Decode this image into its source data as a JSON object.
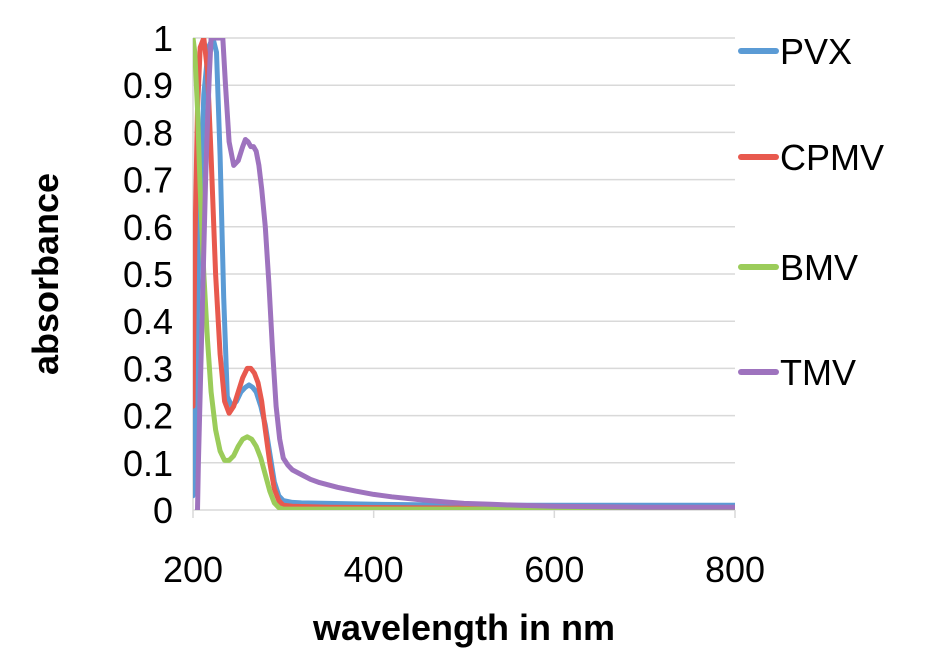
{
  "chart_data": {
    "type": "line",
    "title": "",
    "xlabel": "wavelength in nm",
    "ylabel": "absorbance",
    "xlim": [
      200,
      800
    ],
    "ylim": [
      0,
      1
    ],
    "xticks": [
      200,
      400,
      600,
      800
    ],
    "xtick_labels": [
      "200",
      "400",
      "600",
      "800"
    ],
    "yticks": [
      0,
      0.1,
      0.2,
      0.3,
      0.4,
      0.5,
      0.6,
      0.7,
      0.8,
      0.9,
      1
    ],
    "ytick_labels": [
      "0",
      "0.1",
      "0.2",
      "0.3",
      "0.4",
      "0.5",
      "0.6",
      "0.7",
      "0.8",
      "0.9",
      "1"
    ],
    "grid": true,
    "legend_position": "right",
    "series": [
      {
        "name": "PVX",
        "color": "#5b9bd5",
        "x": [
          200,
          203,
          207,
          212,
          217,
          222,
          226,
          230,
          234,
          238,
          243,
          248,
          253,
          258,
          262,
          266,
          270,
          275,
          280,
          285,
          290,
          295,
          300,
          310,
          320,
          350,
          400,
          450,
          500,
          550,
          600,
          650,
          700,
          750,
          800
        ],
        "y": [
          0.03,
          0.25,
          0.6,
          0.88,
          0.98,
          1.0,
          0.97,
          0.75,
          0.45,
          0.24,
          0.22,
          0.23,
          0.25,
          0.26,
          0.265,
          0.26,
          0.25,
          0.22,
          0.18,
          0.12,
          0.06,
          0.03,
          0.02,
          0.016,
          0.015,
          0.014,
          0.012,
          0.011,
          0.01,
          0.01,
          0.01,
          0.01,
          0.01,
          0.01,
          0.01
        ]
      },
      {
        "name": "CPMV",
        "color": "#e8594e",
        "x": [
          200,
          202,
          205,
          208,
          212,
          216,
          220,
          225,
          230,
          235,
          240,
          245,
          250,
          255,
          260,
          264,
          268,
          272,
          276,
          280,
          285,
          290,
          295,
          300,
          310,
          350,
          400,
          500,
          600,
          700,
          800
        ],
        "y": [
          0.22,
          0.55,
          0.85,
          0.98,
          1.0,
          0.93,
          0.75,
          0.5,
          0.33,
          0.23,
          0.205,
          0.22,
          0.25,
          0.28,
          0.3,
          0.3,
          0.29,
          0.27,
          0.23,
          0.17,
          0.1,
          0.045,
          0.02,
          0.01,
          0.008,
          0.006,
          0.005,
          0.004,
          0.004,
          0.004,
          0.004
        ]
      },
      {
        "name": "BMV",
        "color": "#9bcc5a",
        "x": [
          200,
          202,
          205,
          208,
          212,
          216,
          220,
          225,
          230,
          235,
          240,
          245,
          250,
          255,
          260,
          265,
          270,
          275,
          280,
          285,
          290,
          295,
          300,
          310,
          350,
          400,
          500,
          600,
          700,
          800
        ],
        "y": [
          1.0,
          0.97,
          0.85,
          0.68,
          0.5,
          0.36,
          0.25,
          0.17,
          0.125,
          0.105,
          0.105,
          0.115,
          0.135,
          0.15,
          0.155,
          0.15,
          0.135,
          0.11,
          0.075,
          0.04,
          0.015,
          0.005,
          0.002,
          0.002,
          0.002,
          0.002,
          0.002,
          0.002,
          0.002,
          0.002
        ]
      },
      {
        "name": "TMV",
        "color": "#9e73be",
        "x": [
          205,
          206,
          208,
          210,
          212,
          214,
          216,
          218,
          220,
          223,
          227,
          230,
          233,
          236,
          240,
          245,
          250,
          255,
          258,
          261,
          264,
          267,
          270,
          273,
          276,
          280,
          284,
          288,
          292,
          296,
          300,
          305,
          310,
          320,
          330,
          340,
          360,
          380,
          400,
          420,
          450,
          480,
          500,
          530,
          560,
          600,
          650,
          700,
          750,
          800
        ],
        "y": [
          0.0,
          0.1,
          0.25,
          0.4,
          0.55,
          0.7,
          0.82,
          0.92,
          1.0,
          1.0,
          1.0,
          1.0,
          1.0,
          0.9,
          0.78,
          0.73,
          0.74,
          0.77,
          0.785,
          0.78,
          0.77,
          0.77,
          0.76,
          0.73,
          0.68,
          0.6,
          0.48,
          0.34,
          0.22,
          0.15,
          0.11,
          0.095,
          0.085,
          0.075,
          0.065,
          0.058,
          0.048,
          0.04,
          0.033,
          0.028,
          0.022,
          0.017,
          0.014,
          0.012,
          0.01,
          0.008,
          0.007,
          0.006,
          0.006,
          0.006
        ]
      }
    ]
  }
}
